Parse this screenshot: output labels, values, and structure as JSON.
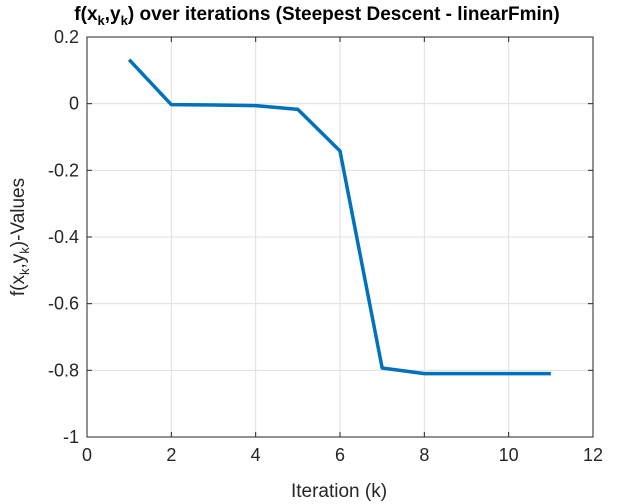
{
  "chart_data": {
    "type": "line",
    "title": {
      "prefix": "f(x",
      "sub1": "k",
      "middle": ",y",
      "sub2": "k",
      "suffix": ") over iterations (Steepest Descent - linearFmin)"
    },
    "xlabel": "Iteration (k)",
    "ylabel": {
      "prefix": "f(x",
      "sub1": "k",
      "middle": ",y",
      "sub2": "k",
      "suffix": ")-Values"
    },
    "xlim": [
      0,
      12
    ],
    "ylim": [
      -1,
      0.2
    ],
    "xticks": [
      0,
      2,
      4,
      6,
      8,
      10,
      12
    ],
    "xtick_labels": [
      "0",
      "2",
      "4",
      "6",
      "8",
      "10",
      "12"
    ],
    "yticks": [
      0.2,
      0,
      -0.2,
      -0.4,
      -0.6,
      -0.8,
      -1
    ],
    "ytick_labels": [
      "0.2",
      "0",
      "-0.2",
      "-0.4",
      "-0.6",
      "-0.8",
      "-1"
    ],
    "grid": true,
    "series": [
      {
        "name": "f(x_k,y_k)",
        "color": "#0072BD",
        "x": [
          1,
          2,
          3,
          4,
          5,
          6,
          7,
          8,
          9,
          10,
          11
        ],
        "y": [
          0.132,
          -0.003,
          -0.004,
          -0.006,
          -0.017,
          -0.142,
          -0.793,
          -0.81,
          -0.81,
          -0.81,
          -0.81
        ]
      }
    ]
  }
}
